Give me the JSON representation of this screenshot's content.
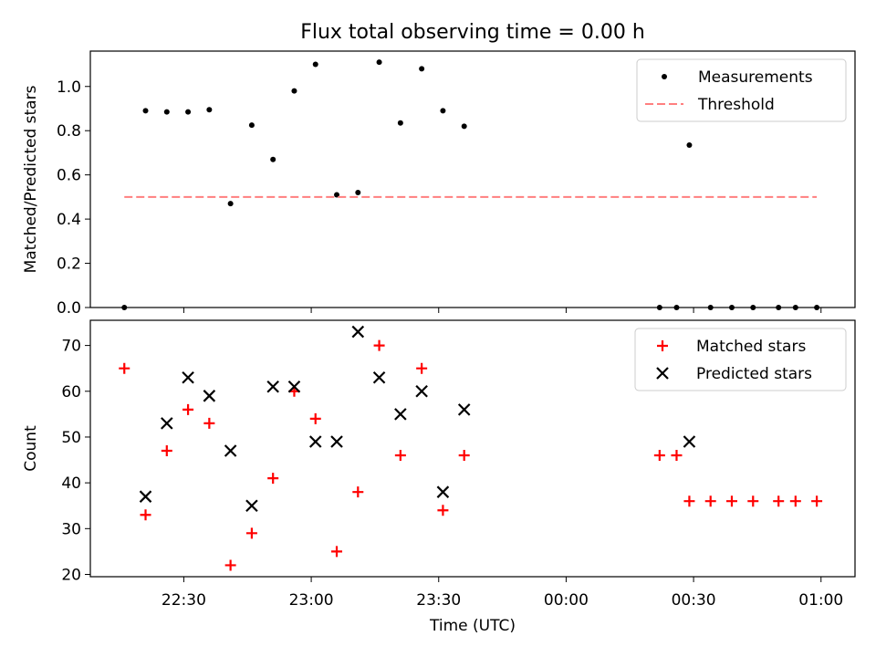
{
  "figure": {
    "title": "Flux total observing time = 0.00 h"
  },
  "chart_data": [
    {
      "type": "scatter",
      "ylabel": "Matched/Predicted stars",
      "ylim": [
        0,
        1.16
      ],
      "yticks": [
        0.0,
        0.2,
        0.4,
        0.6,
        0.8,
        1.0
      ],
      "ytick_labels": [
        "0.0",
        "0.2",
        "0.4",
        "0.6",
        "0.8",
        "1.0"
      ],
      "xlim": [
        "22:08",
        "01:08"
      ],
      "xticks": [
        "22:30",
        "23:00",
        "23:30",
        "00:00",
        "00:30",
        "01:00"
      ],
      "grid": false,
      "legend": "top-right",
      "series": [
        {
          "name": "Measurements",
          "marker": "point",
          "color": "#000000",
          "x": [
            "22:16",
            "22:21",
            "22:26",
            "22:31",
            "22:36",
            "22:41",
            "22:46",
            "22:51",
            "22:56",
            "23:01",
            "23:06",
            "23:11",
            "23:16",
            "23:21",
            "23:26",
            "23:31",
            "23:36",
            "23:41",
            "00:22",
            "00:26",
            "00:29",
            "00:34",
            "00:39",
            "00:44",
            "00:50",
            "00:54",
            "00:59"
          ],
          "y": [
            0.0,
            0.89,
            0.885,
            0.885,
            0.895,
            0.47,
            0.825,
            0.67,
            0.98,
            1.1,
            0.51,
            0.52,
            1.11,
            0.835,
            1.08,
            0.89,
            0.82,
            null,
            0.0,
            0.0,
            0.735,
            0.0,
            0.0,
            0.0,
            0.0,
            0.0,
            0.0
          ]
        },
        {
          "name": "Threshold",
          "marker": "dashed-line",
          "color": "#ff7f7f",
          "x": [
            "22:16",
            "00:59"
          ],
          "y": [
            0.5,
            0.5
          ]
        }
      ]
    },
    {
      "type": "scatter",
      "xlabel": "Time (UTC)",
      "ylabel": "Count",
      "ylim": [
        19.5,
        75.5
      ],
      "yticks": [
        20,
        30,
        40,
        50,
        60,
        70
      ],
      "ytick_labels": [
        "20",
        "30",
        "40",
        "50",
        "60",
        "70"
      ],
      "xlim": [
        "22:08",
        "01:08"
      ],
      "xticks": [
        "22:30",
        "23:00",
        "23:30",
        "00:00",
        "00:30",
        "01:00"
      ],
      "xtick_labels": [
        "22:30",
        "23:00",
        "23:30",
        "00:00",
        "00:30",
        "01:00"
      ],
      "grid": false,
      "legend": "top-right",
      "series": [
        {
          "name": "Matched stars",
          "marker": "plus",
          "color": "#ff0000",
          "x": [
            "22:16",
            "22:21",
            "22:26",
            "22:31",
            "22:36",
            "22:41",
            "22:46",
            "22:51",
            "22:56",
            "23:01",
            "23:06",
            "23:11",
            "23:16",
            "23:21",
            "23:26",
            "23:31",
            "23:36",
            "23:41",
            "00:22",
            "00:26",
            "00:29",
            "00:34",
            "00:39",
            "00:44",
            "00:50",
            "00:54",
            "00:59"
          ],
          "y": [
            65,
            33,
            47,
            56,
            53,
            22,
            29,
            41,
            60,
            54,
            25,
            38,
            70,
            46,
            65,
            34,
            46,
            null,
            46,
            46,
            36,
            36,
            36,
            36,
            36,
            36,
            36
          ]
        },
        {
          "name": "Predicted stars",
          "marker": "x",
          "color": "#000000",
          "x": [
            "22:21",
            "22:26",
            "22:31",
            "22:36",
            "22:41",
            "22:46",
            "22:51",
            "22:56",
            "23:01",
            "23:06",
            "23:11",
            "23:16",
            "23:21",
            "23:26",
            "23:31",
            "23:36",
            "00:29"
          ],
          "y": [
            37,
            53,
            63,
            59,
            47,
            35,
            61,
            61,
            49,
            49,
            73,
            63,
            55,
            60,
            38,
            56,
            49
          ]
        }
      ]
    }
  ]
}
